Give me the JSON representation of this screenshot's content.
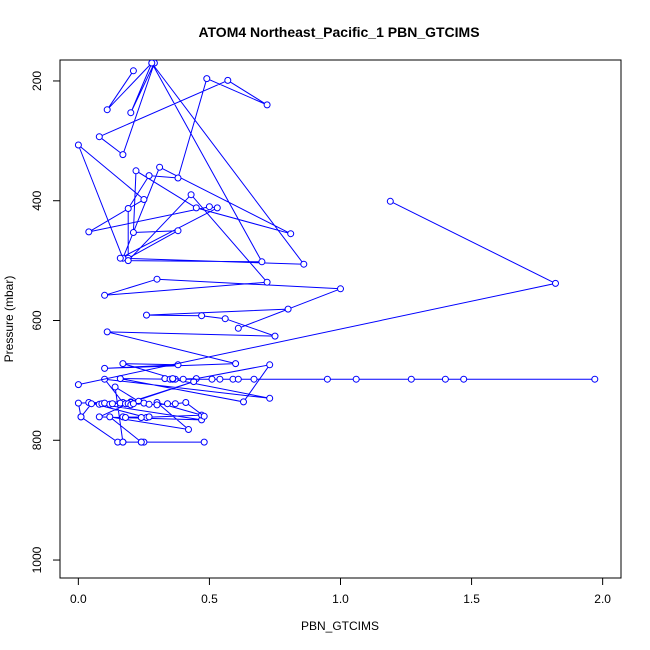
{
  "chart_data": {
    "type": "line",
    "title": "ATOM4 Northeast_Pacific_1 PBN_GTCIMS",
    "xlabel": "PBN_GTCIMS",
    "ylabel": "Pressure (mbar)",
    "xlim": [
      -0.07,
      2.07
    ],
    "ylim": [
      1030,
      165
    ],
    "y_reversed": true,
    "x_ticks": [
      0.0,
      0.5,
      1.0,
      1.5,
      2.0
    ],
    "x_tick_labels": [
      "0.0",
      "0.5",
      "1.0",
      "1.5",
      "2.0"
    ],
    "y_ticks": [
      200,
      400,
      600,
      800,
      1000
    ],
    "y_tick_labels": [
      "200",
      "400",
      "600",
      "800",
      "1000"
    ],
    "grid": false,
    "legend": "none",
    "colors": {
      "series": "#0000ff",
      "axis": "#000000",
      "background": "#ffffff"
    },
    "series": [
      {
        "x": [
          0.21,
          0.11,
          0.28,
          0.2,
          0.29,
          0.17,
          0.08,
          0.57,
          0.72,
          0.49,
          0.38,
          0.27,
          0.19,
          0.19,
          0.38,
          0.21,
          0.22,
          0.45,
          0.81,
          0.31,
          0.17,
          0.0,
          0.25,
          0.04,
          0.5,
          0.53,
          0.16,
          0.86,
          0.28,
          0.7,
          0.19,
          0.43,
          0.72,
          0.1,
          0.3,
          1.0,
          0.61,
          0.8,
          0.26,
          0.47,
          0.56,
          0.75,
          0.11,
          0.6,
          0.1,
          0.38,
          0.17,
          0.37,
          0.33,
          0.35,
          0.45,
          0.73,
          0.63,
          0.16,
          0.36,
          0.73,
          0.1,
          0.17,
          0.2,
          0.44,
          0.2,
          0.08,
          0.47,
          0.04,
          0.26,
          0.17,
          0.18,
          0.27,
          0.24,
          0.47,
          0.3,
          0.42,
          0.12,
          0.24,
          0.15,
          0.01,
          0.0,
          0.23,
          0.14,
          0.17,
          0.25,
          0.17,
          0.24,
          0.48
        ],
        "y": [
          183,
          248,
          170,
          253,
          170,
          323,
          293,
          199,
          240,
          196,
          362,
          358,
          413,
          496,
          450,
          453,
          350,
          412,
          455,
          344,
          496,
          307,
          398,
          452,
          410,
          412,
          496,
          506,
          170,
          502,
          500,
          390,
          536,
          558,
          531,
          547,
          613,
          581,
          591,
          592,
          597,
          626,
          619,
          672,
          680,
          674,
          672,
          698,
          697,
          698,
          697,
          674,
          736,
          697,
          698,
          730,
          698,
          737,
          736,
          702,
          737,
          761,
          766,
          737,
          762,
          761,
          762,
          761,
          762,
          758,
          737,
          782,
          761,
          803,
          803,
          761,
          738,
          735,
          711,
          803,
          803,
          803,
          803,
          803
        ]
      },
      {
        "x": [
          1.19,
          1.82,
          0.0
        ],
        "y": [
          401,
          538,
          707
        ]
      },
      {
        "x": [
          0.36,
          0.4,
          0.51,
          0.54,
          0.59,
          0.61,
          0.67,
          0.95,
          1.06,
          1.27,
          1.4,
          1.47,
          1.97
        ],
        "y": [
          697,
          698,
          698,
          698,
          698,
          698,
          698,
          698,
          698,
          698,
          698,
          698,
          698
        ]
      },
      {
        "x": [
          0.01,
          0.05,
          0.08,
          0.09,
          0.1,
          0.12,
          0.13,
          0.16,
          0.18,
          0.19,
          0.2,
          0.21,
          0.25,
          0.27,
          0.3,
          0.34,
          0.37,
          0.41,
          0.48
        ],
        "y": [
          761,
          739,
          740,
          739,
          738,
          740,
          739,
          738,
          739,
          739,
          741,
          739,
          738,
          740,
          741,
          739,
          739,
          737,
          760
        ]
      }
    ]
  }
}
